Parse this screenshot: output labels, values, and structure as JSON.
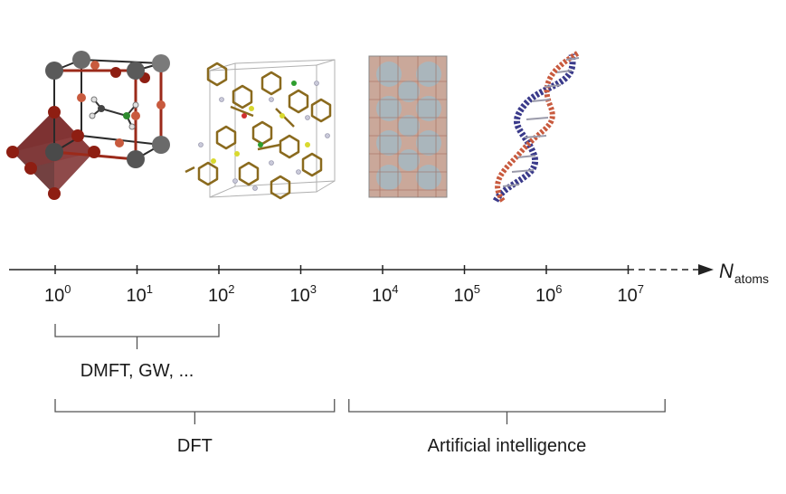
{
  "axis": {
    "variable": "N",
    "subscript": "atoms",
    "base": "10",
    "tick_exponents": [
      "0",
      "1",
      "2",
      "3",
      "4",
      "5",
      "6",
      "7"
    ]
  },
  "ranges": [
    {
      "label": "DMFT, GW, ...",
      "from_exponent": 0,
      "to_exponent": 2,
      "level": 1
    },
    {
      "label": "DFT",
      "from_exponent": 0,
      "to_exponent": 3.5,
      "level": 2
    },
    {
      "label": "Artificial intelligence",
      "from_exponent": 3.5,
      "to_exponent": 7.45,
      "level": 2
    }
  ],
  "illustrations": [
    {
      "subject": "perovskite-unit-cell",
      "atom_colors": [
        "#5a5a5a",
        "#9b2a1a",
        "#c85a3e",
        "#2e8b2e"
      ]
    },
    {
      "subject": "molecular-crystal",
      "atom_colors": [
        "#8a6a1e",
        "#c9c9d9",
        "#d9d92e",
        "#2e9e2e"
      ]
    },
    {
      "subject": "nanoparticle-supercell",
      "atom_colors": [
        "#b89a8a",
        "#9fb0b8"
      ]
    },
    {
      "subject": "dna-double-helix",
      "atom_colors": [
        "#3a3a8a",
        "#c85a3e",
        "#9a9aaa"
      ]
    }
  ]
}
